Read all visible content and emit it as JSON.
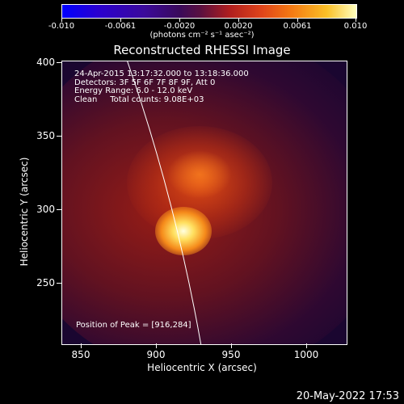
{
  "colorbar": {
    "tick_labels": [
      "-0.010",
      "-0.0061",
      "-0.0020",
      "0.0020",
      "0.0061",
      "0.010"
    ],
    "units": "(photons cm⁻² s⁻¹ asec⁻²)"
  },
  "title": "Reconstructed RHESSI Image",
  "info_lines": [
    "24-Apr-2015 13:17:32.000 to 13:18:36.000",
    "Detectors: 3F 5F 6F 7F 8F 9F, Att 0",
    "Energy Range: 6.0 - 12.0 keV",
    "Clean     Total counts: 9.08E+03"
  ],
  "peak_text": "Position of Peak = [916,284]",
  "x_ticks": [
    "850",
    "900",
    "950",
    "1000"
  ],
  "y_ticks": [
    "400",
    "350",
    "300",
    "250"
  ],
  "xlabel": "Heliocentric X (arcsec)",
  "ylabel": "Heliocentric Y (arcsec)",
  "date": "20-May-2022 17:53"
}
